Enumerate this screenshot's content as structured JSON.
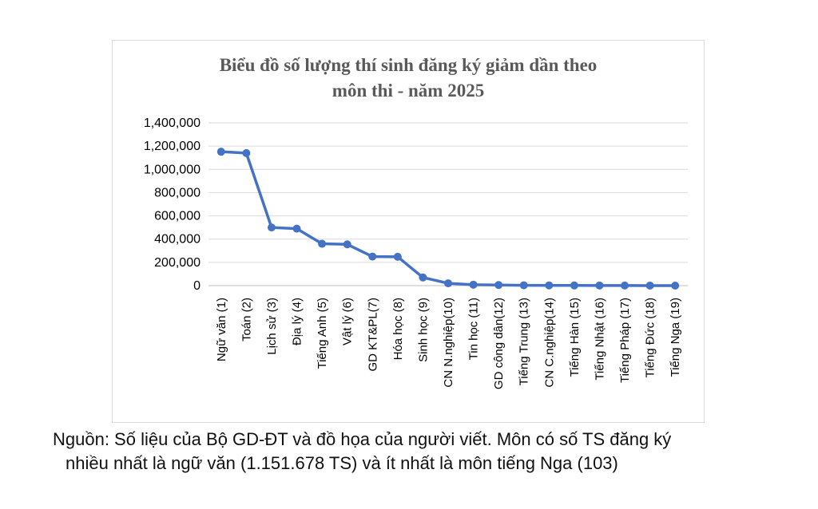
{
  "chart_data": {
    "type": "line",
    "title": [
      "Biểu đồ số lượng thí sinh đăng ký giảm dần theo",
      "môn thi - năm 2025"
    ],
    "categories": [
      "Ngữ văn (1)",
      "Toán (2)",
      "Lịch sử (3)",
      "Địa lý (4)",
      "Tiếng Anh (5)",
      "Vật lý (6)",
      "GD KT&PL(7)",
      "Hóa học (8)",
      "Sinh học (9)",
      "CN N.nghiệp(10)",
      "Tin học (11)",
      "GD công dân(12)",
      "Tiếng Trung (13)",
      "CN C.nghiệp(14)",
      "Tiếng Hàn (15)",
      "Tiếng Nhật (16)",
      "Tiếng Pháp (17)",
      "Tiếng Đức (18)",
      "Tiếng Nga (19)"
    ],
    "values": [
      1151678,
      1140000,
      500000,
      490000,
      360000,
      355000,
      250000,
      248000,
      70000,
      20000,
      8000,
      5000,
      3000,
      2000,
      1500,
      1200,
      800,
      400,
      103
    ],
    "yticks": [
      "0",
      "200,000",
      "400,000",
      "600,000",
      "800,000",
      "1,000,000",
      "1,200,000",
      "1,400,000"
    ],
    "ylim": [
      0,
      1400000
    ],
    "grid": true,
    "line_color": "#4472c4",
    "xlabel": "",
    "ylabel": ""
  },
  "caption": {
    "line1": "Nguồn: Số liệu của Bộ GD-ĐT và đồ họa của người viết. Môn có số TS đăng ký",
    "line2": "nhiều nhất là ngữ văn (1.151.678 TS) và ít nhất là môn tiếng Nga (103)"
  }
}
